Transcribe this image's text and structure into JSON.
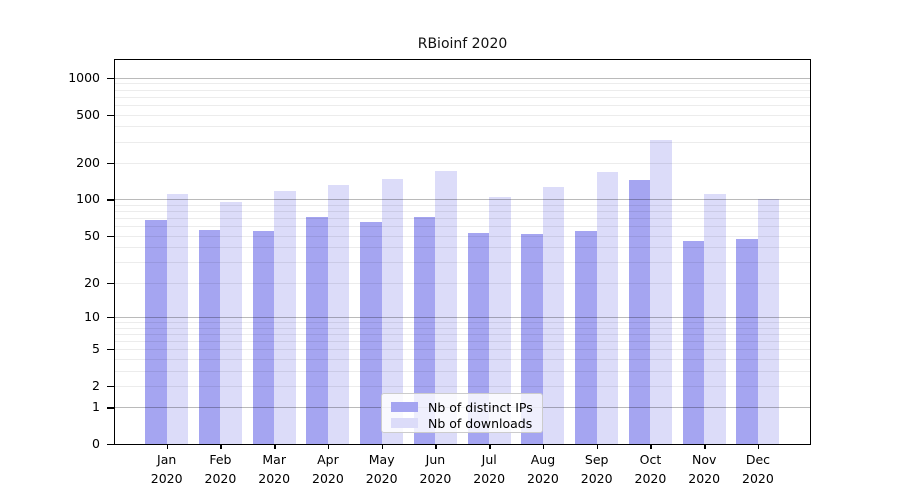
{
  "chart_data": {
    "type": "bar",
    "title": "RBioinf 2020",
    "categories": [
      "Jan",
      "Feb",
      "Mar",
      "Apr",
      "May",
      "Jun",
      "Jul",
      "Aug",
      "Sep",
      "Oct",
      "Nov",
      "Dec"
    ],
    "category_year": "2020",
    "xlabel": "",
    "ylabel": "",
    "yscale": "log1p",
    "ylim": [
      0,
      1500
    ],
    "y_ticks": [
      0,
      1,
      2,
      5,
      10,
      20,
      50,
      100,
      200,
      500,
      1000
    ],
    "grid": "on",
    "grid_major": [
      1,
      10,
      100,
      1000
    ],
    "grid_minor": [
      2,
      3,
      4,
      5,
      6,
      7,
      8,
      9,
      20,
      30,
      40,
      50,
      60,
      70,
      80,
      90,
      200,
      300,
      400,
      500,
      600,
      700,
      800,
      900
    ],
    "legend_position": "lower-center",
    "series": [
      {
        "name": "Nb of distinct IPs",
        "color": "#a5a5f1",
        "values": [
          68,
          56,
          55,
          71,
          65,
          72,
          53,
          52,
          55,
          145,
          45,
          47
        ]
      },
      {
        "name": "Nb of downloads",
        "color": "#dcdcf9",
        "values": [
          110,
          95,
          118,
          132,
          147,
          170,
          105,
          127,
          168,
          310,
          110,
          100
        ]
      }
    ]
  }
}
